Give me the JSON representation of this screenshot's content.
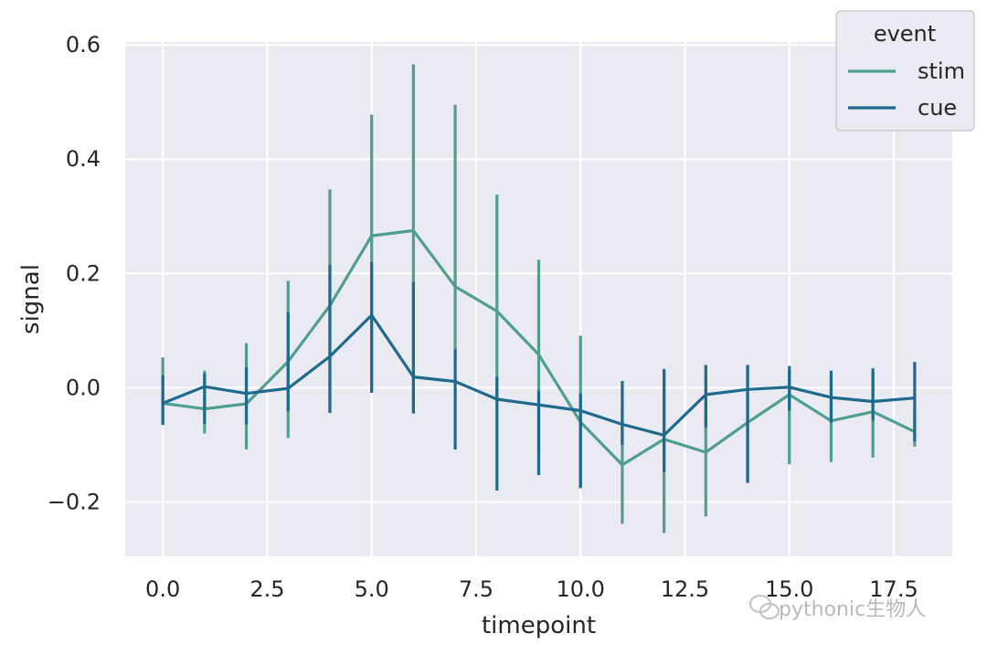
{
  "chart_data": {
    "type": "line",
    "xlabel": "timepoint",
    "ylabel": "signal",
    "xlim": [
      -0.9,
      18.9
    ],
    "ylim": [
      -0.295,
      0.605
    ],
    "xticks": [
      0.0,
      2.5,
      5.0,
      7.5,
      10.0,
      12.5,
      15.0,
      17.5
    ],
    "xtick_labels": [
      "0.0",
      "2.5",
      "5.0",
      "7.5",
      "10.0",
      "12.5",
      "15.0",
      "17.5"
    ],
    "yticks": [
      -0.2,
      0.0,
      0.2,
      0.4,
      0.6
    ],
    "ytick_labels": [
      "−0.2",
      "0.0",
      "0.2",
      "0.4",
      "0.6"
    ],
    "grid": true,
    "legend": {
      "title": "event",
      "placement": "top-right"
    },
    "series": [
      {
        "name": "stim",
        "color": "#4f9e8e",
        "x": [
          0,
          1,
          2,
          3,
          4,
          5,
          6,
          7,
          8,
          9,
          10,
          11,
          12,
          13,
          14,
          15,
          16,
          17,
          18
        ],
        "y": [
          -0.027,
          -0.037,
          -0.028,
          0.046,
          0.144,
          0.266,
          0.275,
          0.177,
          0.134,
          0.058,
          -0.06,
          -0.135,
          -0.09,
          -0.113,
          -0.061,
          -0.012,
          -0.058,
          -0.042,
          -0.077
        ],
        "err_low": [
          -0.062,
          -0.08,
          -0.108,
          -0.088,
          -0.04,
          -0.004,
          -0.04,
          0.05,
          -0.015,
          -0.115,
          -0.176,
          -0.238,
          -0.254,
          -0.225,
          -0.167,
          -0.134,
          -0.13,
          -0.122,
          -0.103
        ],
        "err_high": [
          0.053,
          0.03,
          0.078,
          0.187,
          0.347,
          0.478,
          0.566,
          0.495,
          0.338,
          0.224,
          0.091,
          -0.04,
          0.03,
          0.018,
          0.04,
          0.03,
          0.02,
          0.025,
          -0.04
        ]
      },
      {
        "name": "cue",
        "color": "#1e6a8d",
        "x": [
          0,
          1,
          2,
          3,
          4,
          5,
          6,
          7,
          8,
          9,
          10,
          11,
          12,
          13,
          14,
          15,
          16,
          17,
          18
        ],
        "y": [
          -0.027,
          0.002,
          -0.01,
          -0.001,
          0.055,
          0.127,
          0.019,
          0.011,
          -0.02,
          -0.03,
          -0.04,
          -0.064,
          -0.083,
          -0.012,
          -0.003,
          0.001,
          -0.017,
          -0.024,
          -0.018
        ],
        "err_low": [
          -0.065,
          -0.063,
          -0.064,
          -0.041,
          -0.044,
          -0.009,
          -0.045,
          -0.108,
          -0.18,
          -0.153,
          -0.175,
          -0.1,
          -0.148,
          -0.07,
          -0.166,
          -0.04,
          -0.061,
          -0.058,
          -0.094
        ],
        "err_high": [
          0.022,
          0.025,
          0.036,
          0.132,
          0.215,
          0.22,
          0.185,
          0.068,
          0.019,
          -0.005,
          -0.01,
          0.012,
          0.033,
          0.04,
          0.04,
          0.038,
          0.03,
          0.034,
          0.045
        ]
      }
    ]
  },
  "watermark": "pythonic生物人"
}
